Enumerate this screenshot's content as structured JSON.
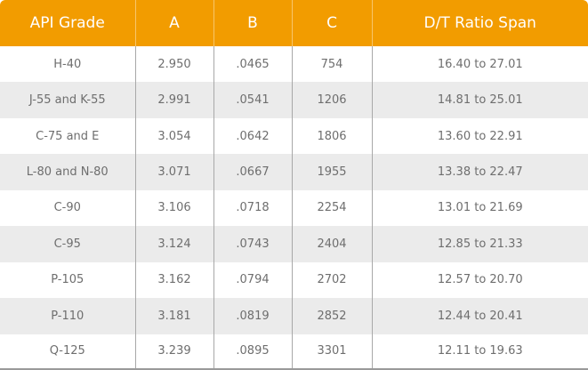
{
  "table": {
    "headers": [
      "API Grade",
      "A",
      "B",
      "C",
      "D/T Ratio Span"
    ],
    "rows": [
      [
        "H-40",
        "2.950",
        ".0465",
        "754",
        "16.40 to 27.01"
      ],
      [
        "J-55 and K-55",
        "2.991",
        ".0541",
        "1206",
        "14.81 to 25.01"
      ],
      [
        "C-75 and E",
        "3.054",
        ".0642",
        "1806",
        "13.60 to 22.91"
      ],
      [
        "L-80 and N-80",
        "3.071",
        ".0667",
        "1955",
        "13.38 to 22.47"
      ],
      [
        "C-90",
        "3.106",
        ".0718",
        "2254",
        "13.01 to 21.69"
      ],
      [
        "C-95",
        "3.124",
        ".0743",
        "2404",
        "12.85 to 21.33"
      ],
      [
        "P-105",
        "3.162",
        ".0794",
        "2702",
        "12.57 to 20.70"
      ],
      [
        "P-110",
        "3.181",
        ".0819",
        "2852",
        "12.44 to 20.41"
      ],
      [
        "Q-125",
        "3.239",
        ".0895",
        "3301",
        "12.11 to 19.63"
      ]
    ]
  },
  "colors": {
    "header_bg": "#f29c00",
    "header_text": "#ffffff",
    "row_alt_bg": "#ebebeb",
    "cell_text": "#6e6e6e"
  }
}
